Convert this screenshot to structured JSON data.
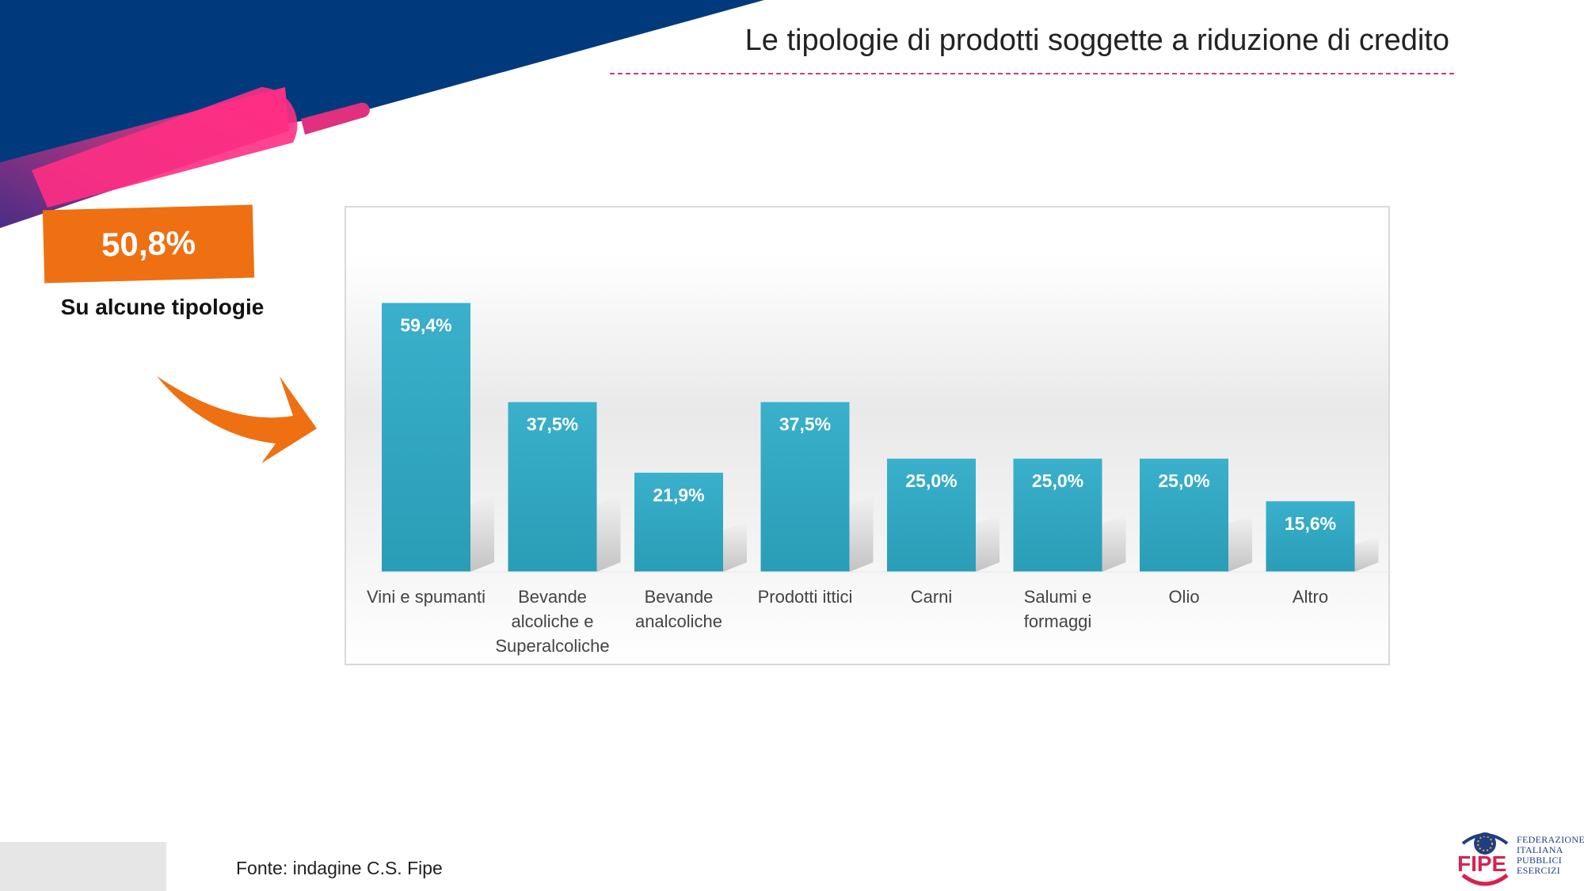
{
  "header": {
    "title": "Le tipologie di prodotti soggette a riduzione di credito"
  },
  "highlight": {
    "value": "50,8%",
    "label": "Su alcune tipologie"
  },
  "footer": {
    "source": "Fonte: indagine C.S. Fipe"
  },
  "logo": {
    "acronym": "FIPE",
    "lines": [
      "FEDERAZIONE",
      "ITALIANA",
      "PUBBLICI",
      "ESERCIZI"
    ]
  },
  "colors": {
    "bar": "#3ab0cc",
    "bar_dark": "#2a9db6",
    "highlight": "#ee7012",
    "navy": "#003a7d",
    "pink": "#ff2f84",
    "purple": "#6b2f86",
    "rule": "#d33a7a"
  },
  "chart_data": {
    "type": "bar",
    "categories": [
      [
        "Vini e spumanti"
      ],
      [
        "Bevande",
        "alcoliche e",
        "Superalcoliche"
      ],
      [
        "Bevande",
        "analcoliche"
      ],
      [
        "Prodotti ittici"
      ],
      [
        "Carni"
      ],
      [
        "Salumi e",
        "formaggi"
      ],
      [
        "Olio"
      ],
      [
        "Altro"
      ]
    ],
    "values": [
      59.4,
      37.5,
      21.9,
      37.5,
      25.0,
      25.0,
      25.0,
      15.6
    ],
    "value_labels": [
      "59,4%",
      "37,5%",
      "21,9%",
      "37,5%",
      "25,0%",
      "25,0%",
      "25,0%",
      "15,6%"
    ],
    "ylim": [
      0,
      70
    ],
    "grid": false,
    "legend": "none"
  }
}
